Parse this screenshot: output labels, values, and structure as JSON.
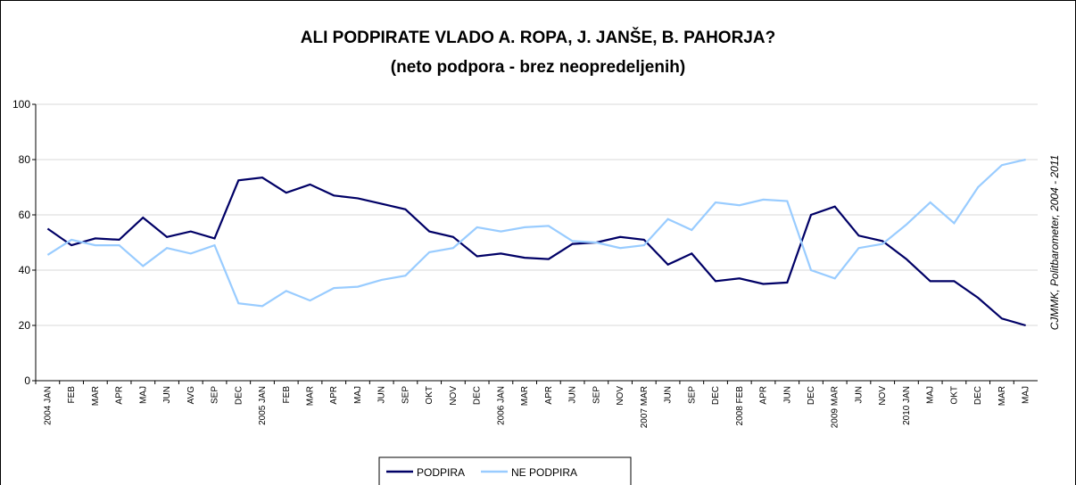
{
  "chart_data": {
    "type": "line",
    "title": "ALI PODPIRATE VLADO A. ROPA, J. JANŠE, B. PAHORJA?",
    "subtitle": "(neto podpora - brez neopredeljenih)",
    "annotation": "CJMMK, Politbarometer, 2004 - 2011",
    "categories": [
      "2004 JAN",
      "FEB",
      "MAR",
      "APR",
      "MAJ",
      "JUN",
      "AVG",
      "SEP",
      "DEC",
      "2005 JAN",
      "FEB",
      "MAR",
      "APR",
      "MAJ",
      "JUN",
      "SEP",
      "OKT",
      "NOV",
      "DEC",
      "2006 JAN",
      "MAR",
      "APR",
      "JUN",
      "SEP",
      "NOV",
      "2007 MAR",
      "JUN",
      "SEP",
      "DEC",
      "2008 FEB",
      "APR",
      "JUN",
      "DEC",
      "2009 MAR",
      "JUN",
      "NOV",
      "2010 JAN",
      "MAJ",
      "OKT",
      "DEC",
      "MAR",
      "MAJ"
    ],
    "series": [
      {
        "name": "PODPIRA",
        "color": "#000066",
        "values": [
          55,
          49,
          51.5,
          51,
          59,
          52,
          54,
          51.5,
          72.5,
          73.5,
          68,
          71,
          67,
          66,
          64,
          62,
          54,
          52,
          45,
          46,
          44.5,
          44,
          49.5,
          50,
          52,
          51,
          42,
          46,
          36,
          37,
          35,
          35.5,
          60,
          63,
          52.5,
          50.5,
          44,
          36,
          36,
          30,
          22.5,
          20
        ]
      },
      {
        "name": "NE PODPIRA",
        "color": "#99ccff",
        "values": [
          45.5,
          51,
          49,
          49,
          41.5,
          48,
          46,
          49,
          28,
          27,
          32.5,
          29,
          33.5,
          34,
          36.5,
          38,
          46.5,
          48,
          55.5,
          54,
          55.5,
          56,
          50.5,
          50,
          48,
          49,
          58.5,
          54.5,
          64.5,
          63.5,
          65.5,
          65,
          40,
          37,
          48,
          49.5,
          56.5,
          64.5,
          57,
          70,
          78,
          80
        ]
      }
    ],
    "ylim": [
      0,
      100
    ],
    "yticks": [
      0,
      20,
      40,
      60,
      80,
      100
    ],
    "grid": true,
    "legend": "bottom"
  }
}
